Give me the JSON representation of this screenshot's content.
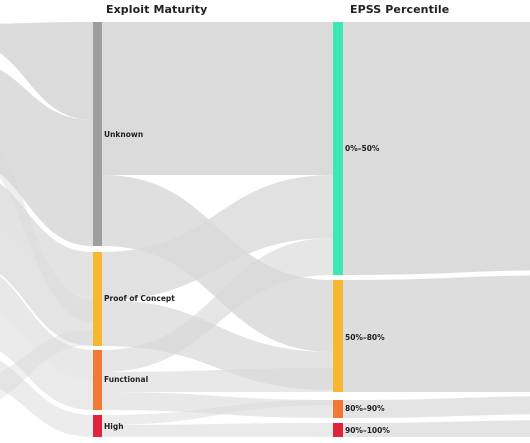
{
  "columns": {
    "exploit_maturity": "Exploit Maturity",
    "epss_percentile": "EPSS Percentile"
  },
  "exploit_maturity_nodes": [
    {
      "key": "unknown",
      "label": "Unknown",
      "color": "#9e9e9e"
    },
    {
      "key": "poc",
      "label": "Proof of Concept",
      "color": "#f7b731"
    },
    {
      "key": "functional",
      "label": "Functional",
      "color": "#f07a35"
    },
    {
      "key": "high",
      "label": "High",
      "color": "#e0253a"
    }
  ],
  "epss_nodes": [
    {
      "key": "p0_50",
      "label": "0%–50%",
      "color": "#3ee8b5"
    },
    {
      "key": "p50_80",
      "label": "50%–80%",
      "color": "#f7b731"
    },
    {
      "key": "p80_90",
      "label": "80%–90%",
      "color": "#f07a35"
    },
    {
      "key": "p90_100",
      "label": "90%–100%",
      "color": "#e0253a"
    }
  ],
  "link_color": "#d9d9d9"
}
